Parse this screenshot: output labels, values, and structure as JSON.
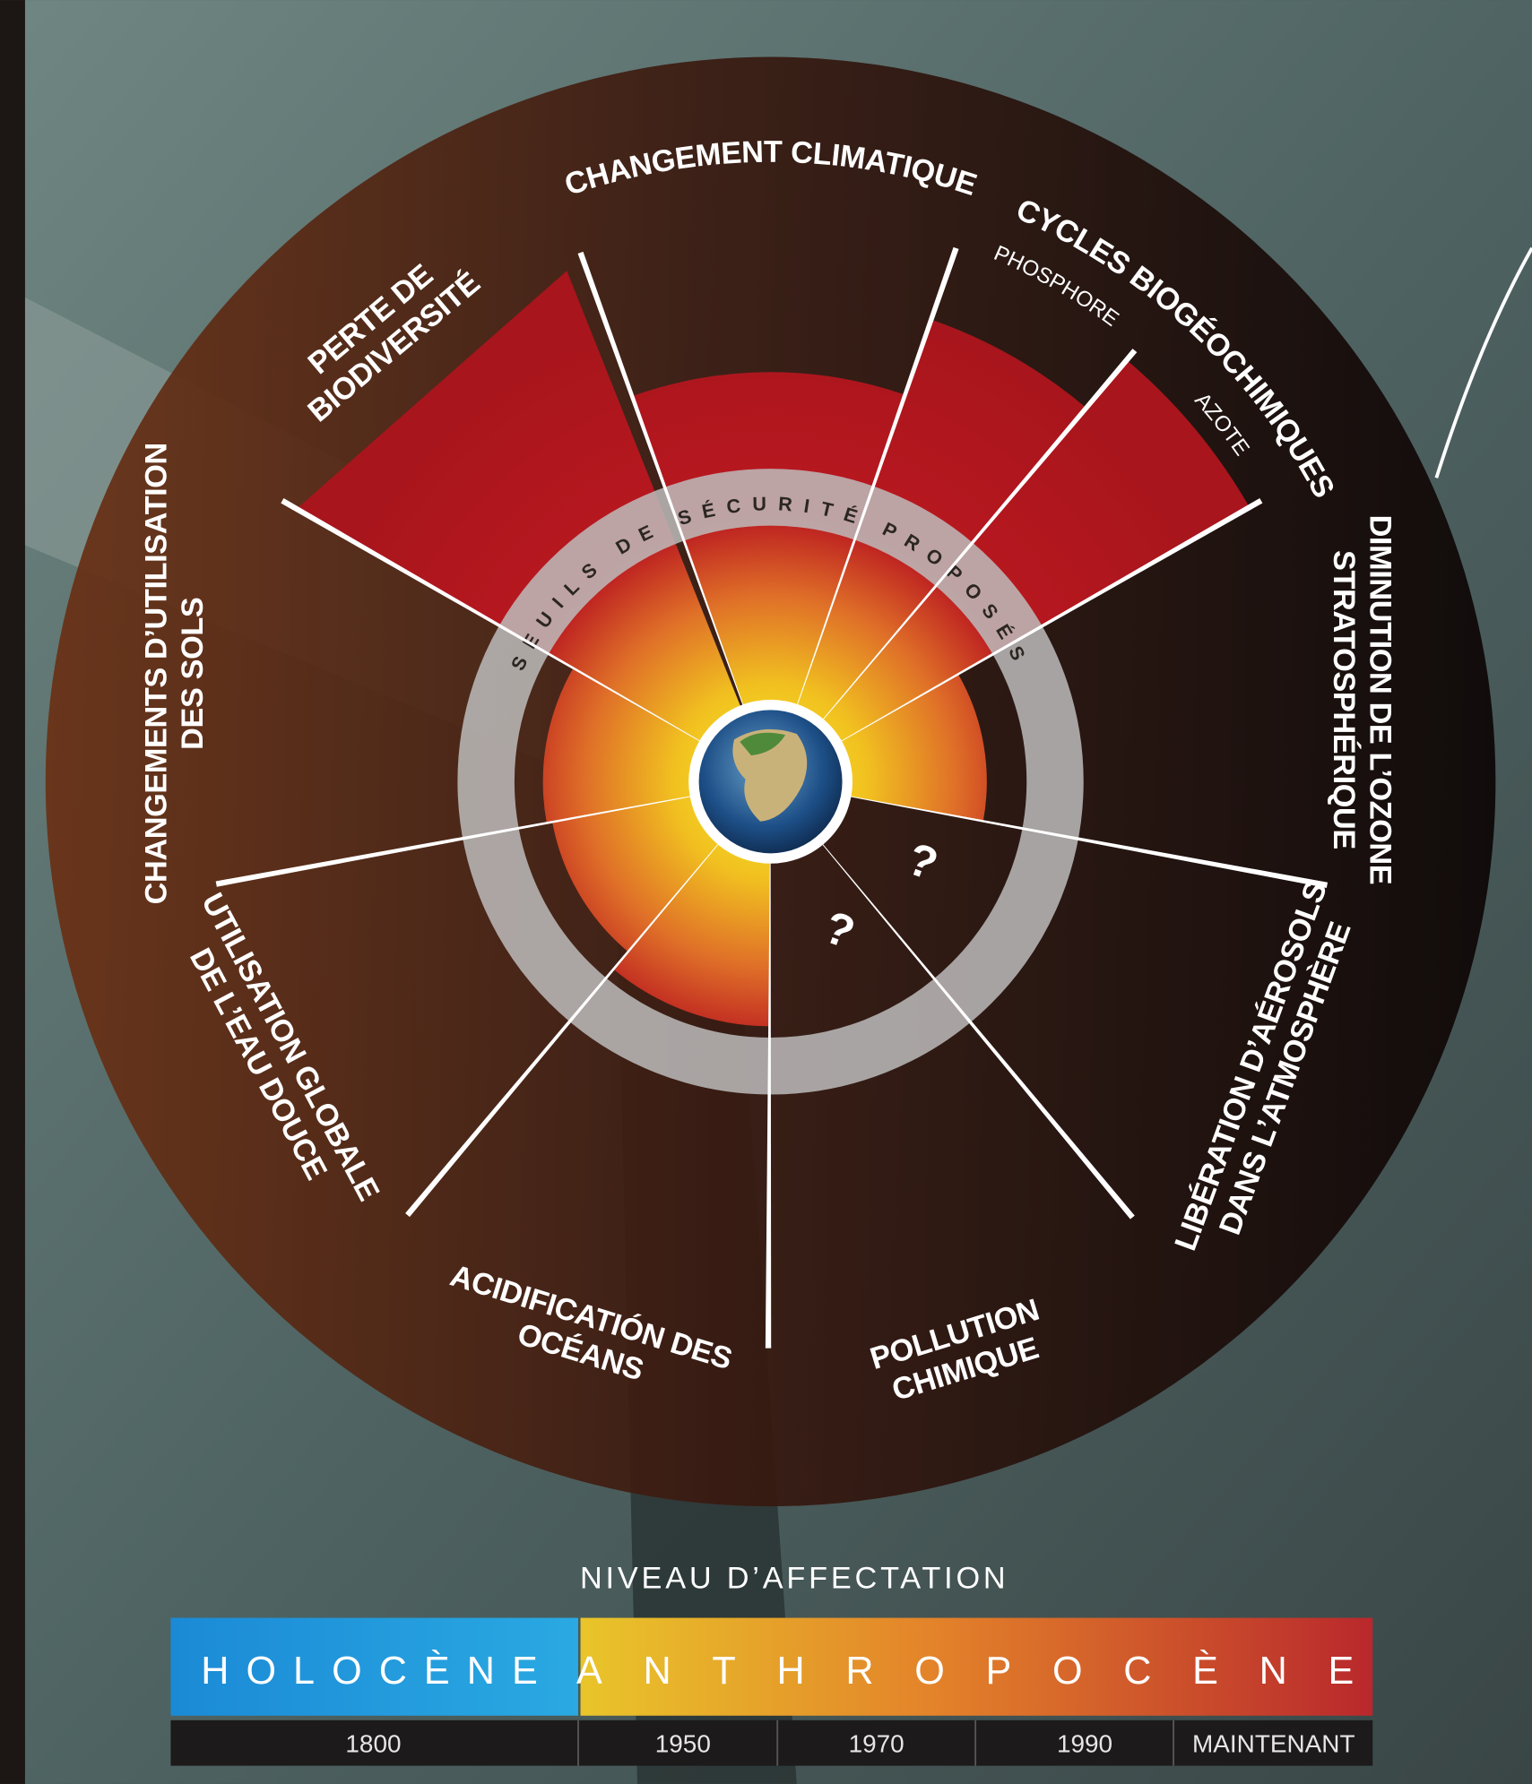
{
  "diagram": {
    "ring_label": "SEUILS DE SÉCURITÉ PROPOSÉS",
    "sectors": [
      {
        "lines": [
          "CHANGEMENT CLIMATIQUE"
        ]
      },
      {
        "lines": [
          "CYCLES BIOGÉOCHIMIQUES"
        ],
        "parts": [
          "PHOSPHORE",
          "AZOTE"
        ]
      },
      {
        "lines": [
          "DIMINUTION DE L’OZONE",
          "STRATOSPHÉRIQUE"
        ]
      },
      {
        "lines": [
          "LIBÉRATION D’AÉROSOLS",
          "DANS L’ATMOSPHÈRE"
        ]
      },
      {
        "lines": [
          "POLLUTION",
          "CHIMIQUE"
        ]
      },
      {
        "lines": [
          "ACIDIFICATIÓN DES",
          "OCÉANS"
        ]
      },
      {
        "lines": [
          "UTILISATION GLOBALE",
          "DE L’EAU DOUCE"
        ]
      },
      {
        "lines": [
          "CHANGEMENTS D’UTILISATION",
          "DES SOLS"
        ]
      },
      {
        "lines": [
          "PERTE DE",
          "BIODIVERSITÉ"
        ]
      }
    ],
    "unknown_marks": [
      "?",
      "?"
    ]
  },
  "legend": {
    "title": "NIVEAU D’AFFECTATION",
    "eras": [
      "HOLOCÈNE",
      "ANTHROPOCÈNE"
    ],
    "timeline": [
      "1800",
      "1950",
      "1970",
      "1990",
      "MAINTENANT"
    ]
  }
}
